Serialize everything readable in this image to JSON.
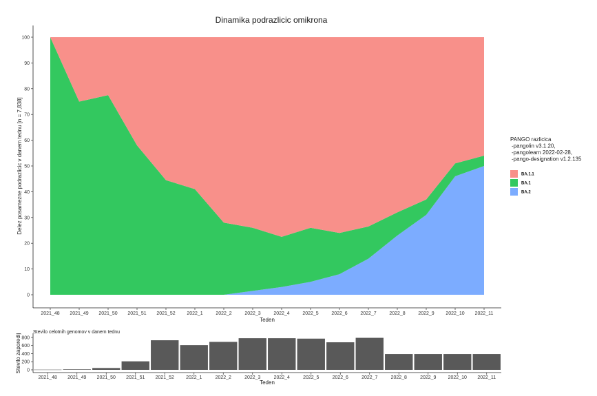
{
  "chart_data": [
    {
      "type": "area",
      "title": "Dinamika podrazlicic omikrona",
      "xlabel": "Teden",
      "ylabel": "Delez posamezne podrazlicic v danem tednu [n = 7,838]",
      "categories": [
        "2021_48",
        "2021_49",
        "2021_50",
        "2021_51",
        "2021_52",
        "2022_1",
        "2022_2",
        "2022_3",
        "2022_4",
        "2022_5",
        "2022_6",
        "2022_7",
        "2022_8",
        "2022_9",
        "2022_10",
        "2022_11"
      ],
      "ylim": [
        0,
        100
      ],
      "yticks": [
        0,
        10,
        20,
        30,
        40,
        50,
        60,
        70,
        80,
        90,
        100
      ],
      "stacked": true,
      "series": [
        {
          "name": "BA.2",
          "color": "#7cacff",
          "values": [
            0,
            0,
            0,
            0,
            0,
            0,
            0,
            1.5,
            3,
            5,
            8,
            14,
            23,
            31,
            46,
            50
          ]
        },
        {
          "name": "BA.1",
          "color": "#33c85f",
          "values": [
            100,
            75,
            77.5,
            58,
            44.5,
            41,
            28,
            24.5,
            19.5,
            21,
            16,
            12.5,
            9,
            6,
            5,
            4
          ]
        },
        {
          "name": "BA.1.1",
          "color": "#f8908a",
          "values": [
            0,
            25,
            22.5,
            42,
            55.5,
            59,
            72,
            74,
            77.5,
            74,
            76,
            73.5,
            68,
            63,
            49,
            46
          ]
        }
      ],
      "legend": {
        "title_lines": [
          "PANGO razlicica",
          "-pangolin v3.1.20,",
          "-pangolearn 2022-02-28,",
          "-pango-designation v1.2.135"
        ],
        "position": "right"
      },
      "grid": false
    },
    {
      "type": "bar",
      "title": "Stevilo celotnih genomov v danem tednu",
      "xlabel": "Teden",
      "ylabel": "Stevilo zaporedij",
      "categories": [
        "2021_48",
        "2021_49",
        "2021_50",
        "2021_51",
        "2021_52",
        "2022_1",
        "2022_2",
        "2022_3",
        "2022_4",
        "2022_5",
        "2022_6",
        "2022_7",
        "2022_8",
        "2022_9",
        "2022_10",
        "2022_11"
      ],
      "values": [
        5,
        12,
        45,
        210,
        730,
        610,
        690,
        780,
        780,
        770,
        680,
        790,
        390,
        390,
        390,
        390
      ],
      "color": "#595959",
      "ylim": [
        0,
        850
      ],
      "yticks": [
        0,
        200,
        400,
        600,
        800
      ]
    }
  ]
}
